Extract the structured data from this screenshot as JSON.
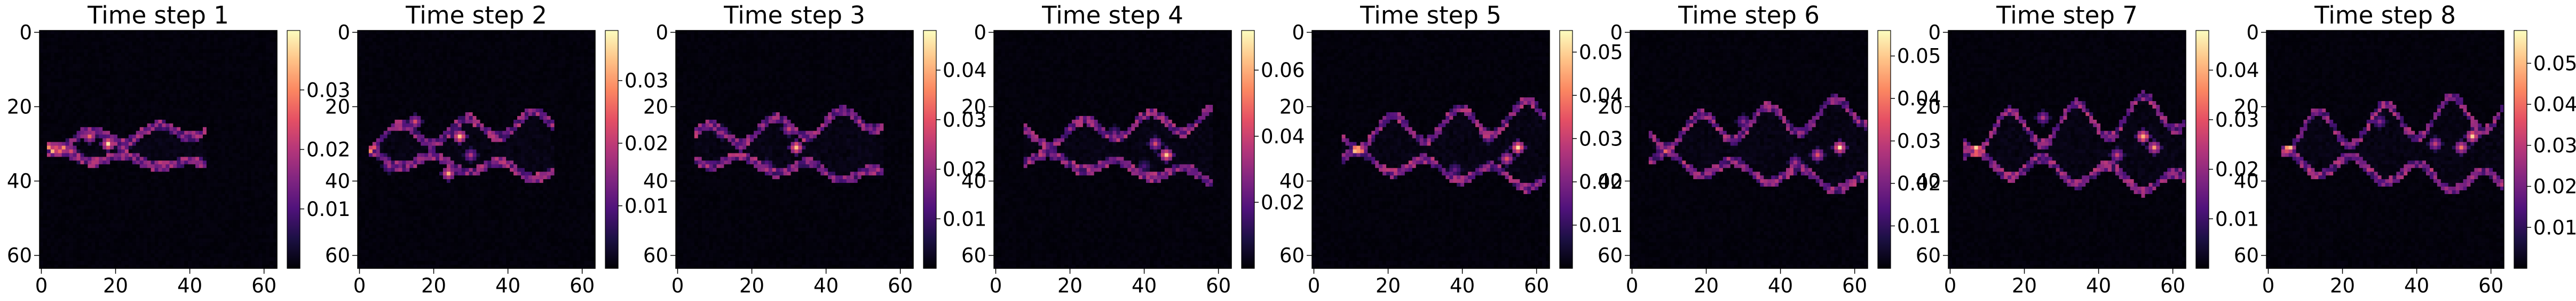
{
  "colormap": {
    "name": "magma",
    "stops": [
      "#000004",
      "#1c1044",
      "#4f127b",
      "#812581",
      "#b5367a",
      "#e55064",
      "#fb8761",
      "#fec287",
      "#fcfdbf"
    ]
  },
  "chart_data": [
    {
      "type": "heatmap",
      "title": "Time step 1",
      "grid_size": 64,
      "xlim": [
        0,
        63
      ],
      "ylim": [
        63,
        0
      ],
      "xticks": [
        0,
        20,
        40,
        60
      ],
      "yticks": [
        0,
        20,
        40,
        60
      ],
      "colorbar": {
        "min": 0.0,
        "max": 0.04,
        "ticks": [
          0.01,
          0.02,
          0.03
        ]
      },
      "hotspots": [
        [
          18,
          30,
          0.038
        ],
        [
          13,
          28,
          0.03
        ],
        [
          8,
          32,
          0.026
        ],
        [
          22,
          31,
          0.02
        ]
      ],
      "plume": {
        "x0": 2,
        "x1": 44,
        "center": 31,
        "amp": 2,
        "width": 5
      },
      "max_value": 0.038
    },
    {
      "type": "heatmap",
      "title": "Time step 2",
      "grid_size": 64,
      "xlim": [
        0,
        63
      ],
      "ylim": [
        63,
        0
      ],
      "xticks": [
        0,
        20,
        40,
        60
      ],
      "yticks": [
        0,
        20,
        40,
        60
      ],
      "colorbar": {
        "min": 0.0,
        "max": 0.038,
        "ticks": [
          0.01,
          0.02,
          0.03
        ]
      },
      "hotspots": [
        [
          27,
          28,
          0.036
        ],
        [
          24,
          38,
          0.032
        ],
        [
          15,
          24,
          0.025
        ],
        [
          30,
          33,
          0.02
        ],
        [
          8,
          36,
          0.018
        ]
      ],
      "plume": {
        "x0": 3,
        "x1": 52,
        "center": 31,
        "amp": 3,
        "width": 7
      },
      "max_value": 0.036
    },
    {
      "type": "heatmap",
      "title": "Time step 3",
      "grid_size": 64,
      "xlim": [
        0,
        63
      ],
      "ylim": [
        63,
        0
      ],
      "xticks": [
        0,
        20,
        40,
        60
      ],
      "yticks": [
        0,
        20,
        40,
        60
      ],
      "colorbar": {
        "min": 0.0,
        "max": 0.048,
        "ticks": [
          0.01,
          0.02,
          0.03,
          0.04
        ]
      },
      "hotspots": [
        [
          32,
          31,
          0.046
        ],
        [
          30,
          26,
          0.03
        ],
        [
          12,
          27,
          0.024
        ],
        [
          24,
          36,
          0.02
        ]
      ],
      "plume": {
        "x0": 5,
        "x1": 55,
        "center": 31,
        "amp": 3,
        "width": 8
      },
      "max_value": 0.046
    },
    {
      "type": "heatmap",
      "title": "Time step 4",
      "grid_size": 64,
      "xlim": [
        0,
        63
      ],
      "ylim": [
        63,
        0
      ],
      "xticks": [
        0,
        20,
        40,
        60
      ],
      "yticks": [
        0,
        20,
        40,
        60
      ],
      "colorbar": {
        "min": 0.0,
        "max": 0.072,
        "ticks": [
          0.02,
          0.04,
          0.06
        ]
      },
      "hotspots": [
        [
          46,
          33,
          0.07
        ],
        [
          43,
          30,
          0.045
        ],
        [
          32,
          27,
          0.025
        ],
        [
          40,
          36,
          0.02
        ]
      ],
      "plume": {
        "x0": 8,
        "x1": 58,
        "center": 31,
        "amp": 3,
        "width": 8
      },
      "max_value": 0.07
    },
    {
      "type": "heatmap",
      "title": "Time step 5",
      "grid_size": 64,
      "xlim": [
        0,
        63
      ],
      "ylim": [
        63,
        0
      ],
      "xticks": [
        0,
        20,
        40,
        60
      ],
      "yticks": [
        0,
        20,
        40,
        60
      ],
      "colorbar": {
        "min": 0.0,
        "max": 0.055,
        "ticks": [
          0.01,
          0.02,
          0.03,
          0.04,
          0.05
        ]
      },
      "hotspots": [
        [
          55,
          31,
          0.053
        ],
        [
          52,
          34,
          0.04
        ],
        [
          47,
          28,
          0.03
        ],
        [
          38,
          37,
          0.02
        ]
      ],
      "plume": {
        "x0": 8,
        "x1": 62,
        "center": 31,
        "amp": 4,
        "width": 9
      },
      "max_value": 0.053
    },
    {
      "type": "heatmap",
      "title": "Time step 6",
      "grid_size": 64,
      "xlim": [
        0,
        63
      ],
      "ylim": [
        63,
        0
      ],
      "xticks": [
        0,
        20,
        40,
        60
      ],
      "yticks": [
        0,
        20,
        40,
        60
      ],
      "colorbar": {
        "min": 0.0,
        "max": 0.056,
        "ticks": [
          0.01,
          0.02,
          0.03,
          0.04,
          0.05
        ]
      },
      "hotspots": [
        [
          56,
          31,
          0.054
        ],
        [
          50,
          33,
          0.04
        ],
        [
          44,
          35,
          0.03
        ],
        [
          30,
          24,
          0.025
        ]
      ],
      "plume": {
        "x0": 5,
        "x1": 63,
        "center": 31,
        "amp": 4,
        "width": 10
      },
      "max_value": 0.054
    },
    {
      "type": "heatmap",
      "title": "Time step 7",
      "grid_size": 64,
      "xlim": [
        0,
        63
      ],
      "ylim": [
        63,
        0
      ],
      "xticks": [
        0,
        20,
        40,
        60
      ],
      "yticks": [
        0,
        20,
        40,
        60
      ],
      "colorbar": {
        "min": 0.0,
        "max": 0.048,
        "ticks": [
          0.01,
          0.02,
          0.03,
          0.04
        ]
      },
      "hotspots": [
        [
          52,
          28,
          0.046
        ],
        [
          55,
          31,
          0.04
        ],
        [
          45,
          33,
          0.03
        ],
        [
          25,
          23,
          0.025
        ]
      ],
      "plume": {
        "x0": 4,
        "x1": 63,
        "center": 31,
        "amp": 5,
        "width": 10
      },
      "max_value": 0.046
    },
    {
      "type": "heatmap",
      "title": "Time step 8",
      "grid_size": 64,
      "xlim": [
        0,
        63
      ],
      "ylim": [
        63,
        0
      ],
      "xticks": [
        0,
        20,
        40,
        60
      ],
      "yticks": [
        0,
        20,
        40,
        60
      ],
      "colorbar": {
        "min": 0.0,
        "max": 0.058,
        "ticks": [
          0.01,
          0.02,
          0.03,
          0.04,
          0.05
        ]
      },
      "hotspots": [
        [
          55,
          28,
          0.056
        ],
        [
          52,
          31,
          0.045
        ],
        [
          45,
          30,
          0.035
        ],
        [
          30,
          24,
          0.025
        ]
      ],
      "plume": {
        "x0": 4,
        "x1": 63,
        "center": 31,
        "amp": 5,
        "width": 10
      },
      "max_value": 0.056
    }
  ]
}
